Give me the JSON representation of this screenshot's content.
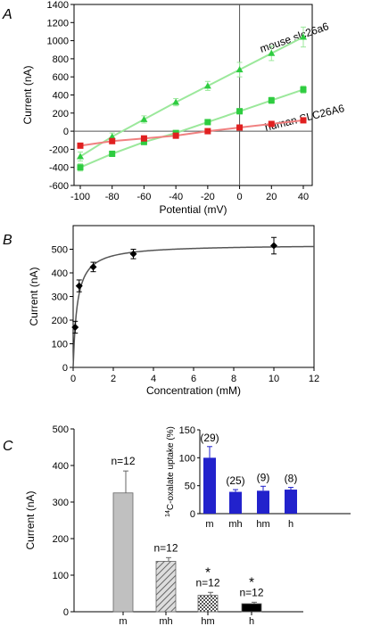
{
  "chart_data": [
    {
      "panel": "A",
      "type": "line",
      "xlabel": "Potential (mV)",
      "ylabel": "Current (nA)",
      "xlim": [
        -100,
        40
      ],
      "ylim": [
        -600,
        1400
      ],
      "x": [
        -100,
        -80,
        -60,
        -40,
        -20,
        0,
        20,
        40
      ],
      "xticks": [
        "-100",
        "-80",
        "-60",
        "-40",
        "-20",
        "0",
        "20",
        "40"
      ],
      "yticks": [
        "1400",
        "1200",
        "1000",
        "800",
        "600",
        "400",
        "200",
        "0",
        "-200",
        "-400",
        "-600"
      ],
      "series": [
        {
          "name": "mouse slc26a6",
          "marker": "triangle",
          "color": "#2ecc40",
          "line": "#9be89b",
          "values": [
            -280,
            -60,
            130,
            320,
            500,
            680,
            860,
            1040
          ],
          "err": [
            50,
            40,
            40,
            40,
            50,
            80,
            80,
            110
          ]
        },
        {
          "name": "",
          "marker": "square",
          "color": "#2ecc40",
          "line": "#9be89b",
          "values": [
            -400,
            -250,
            -120,
            -20,
            100,
            220,
            340,
            460
          ],
          "err": [
            40,
            30,
            25,
            20,
            20,
            30,
            35,
            40
          ]
        },
        {
          "name": "human SLC26A6",
          "marker": "square",
          "color": "#e02020",
          "line": "#f08080",
          "values": [
            -160,
            -110,
            -80,
            -50,
            0,
            40,
            80,
            120
          ],
          "err": [
            20,
            15,
            15,
            10,
            10,
            15,
            15,
            20
          ]
        }
      ]
    },
    {
      "panel": "B",
      "type": "scatter",
      "xlabel": "Concentration (mM)",
      "ylabel": "Current (nA)",
      "xlim": [
        0,
        12
      ],
      "ylim": [
        0,
        600
      ],
      "xticks": [
        "0",
        "2",
        "4",
        "6",
        "8",
        "10",
        "12"
      ],
      "yticks": [
        "0",
        "100",
        "200",
        "300",
        "400",
        "500"
      ],
      "x": [
        0.1,
        0.3,
        1,
        3,
        10
      ],
      "values": [
        170,
        345,
        425,
        480,
        515
      ],
      "err": [
        25,
        25,
        20,
        20,
        35
      ],
      "fit": {
        "vmax": 520,
        "km": 0.2
      }
    },
    {
      "panel": "C",
      "type": "bar",
      "ylabel": "Current (nA)",
      "ylim": [
        0,
        500
      ],
      "yticks": [
        "0",
        "100",
        "200",
        "300",
        "400",
        "500"
      ],
      "categories": [
        "m",
        "mh",
        "hm",
        "h"
      ],
      "values": [
        325,
        138,
        45,
        22
      ],
      "err": [
        60,
        10,
        8,
        4
      ],
      "labels": [
        "n=12",
        "n=12",
        "n=12",
        "n=12"
      ],
      "stars": [
        "",
        "",
        "*",
        "*"
      ],
      "inset": {
        "type": "bar",
        "ylabel_pre": "14",
        "ylabel": "C-oxalate uptake (%)",
        "ylim": [
          0,
          150
        ],
        "yticks": [
          "0",
          "50",
          "100",
          "150"
        ],
        "categories": [
          "m",
          "mh",
          "hm",
          "h"
        ],
        "values": [
          100,
          39,
          41,
          43
        ],
        "err": [
          20,
          4,
          8,
          4
        ],
        "labels": [
          "(29)",
          "(25)",
          "(9)",
          "(8)"
        ],
        "color": "#2222cc"
      }
    }
  ],
  "annotations": {
    "panel_a": "A",
    "panel_b": "B",
    "panel_c": "C",
    "mouse_label": "mouse slc26a6",
    "human_label": "human SLC26A6"
  }
}
